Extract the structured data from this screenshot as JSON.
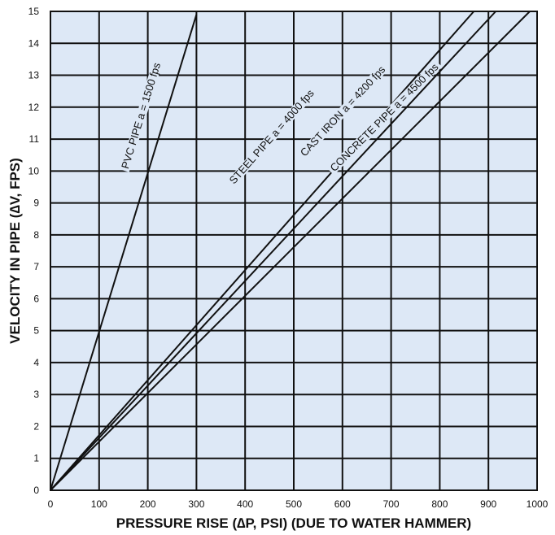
{
  "chart_data": {
    "type": "line",
    "title": "",
    "xlabel": "PRESSURE RISE (∆P, PSI)  (DUE TO WATER HAMMER)",
    "ylabel": "VELOCITY IN PIPE  (∆V, FPS)",
    "xlim": [
      0,
      1000
    ],
    "ylim": [
      0,
      15
    ],
    "x_ticks": [
      "0",
      "100",
      "200",
      "300",
      "400",
      "500",
      "600",
      "700",
      "800",
      "900",
      "1000"
    ],
    "y_ticks": [
      "0",
      "1",
      "2",
      "3",
      "4",
      "5",
      "6",
      "7",
      "8",
      "9",
      "10",
      "11",
      "12",
      "13",
      "14",
      "15"
    ],
    "grid": true,
    "plot_background": "#dde8f6",
    "line_color": "#111111",
    "series": [
      {
        "name": "PVC PIPE  a = 1500 fps",
        "x": [
          0,
          300
        ],
        "y": [
          0,
          14.9
        ],
        "label_x": 193,
        "label_y": 11.7
      },
      {
        "name": "STEEL PIPE  a = 4000 fps",
        "x": [
          0,
          870
        ],
        "y": [
          0,
          15
        ],
        "label_x": 460,
        "label_y": 11.0
      },
      {
        "name": "CAST IRON  a = 4200 fps",
        "x": [
          0,
          915
        ],
        "y": [
          0,
          15
        ],
        "label_x": 606,
        "label_y": 11.8
      },
      {
        "name": "CONCRETE PIPE  a = 4500 fps",
        "x": [
          0,
          985
        ],
        "y": [
          0,
          15
        ],
        "label_x": 691,
        "label_y": 11.6
      }
    ]
  }
}
